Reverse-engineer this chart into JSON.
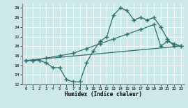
{
  "xlabel": "Humidex (Indice chaleur)",
  "bg_color": "#cce8e8",
  "grid_color": "#ffffff",
  "line_color": "#2d6e6e",
  "xlim": [
    -0.5,
    23.5
  ],
  "ylim": [
    12,
    29
  ],
  "xticks": [
    0,
    1,
    2,
    3,
    4,
    5,
    6,
    7,
    8,
    9,
    10,
    11,
    12,
    13,
    14,
    15,
    16,
    17,
    18,
    19,
    20,
    21,
    22,
    23
  ],
  "yticks": [
    12,
    14,
    16,
    18,
    20,
    22,
    24,
    26,
    28
  ],
  "series1_x": [
    0,
    1,
    2,
    3,
    4,
    5,
    6,
    7,
    8,
    9,
    10,
    11,
    12,
    13,
    14,
    15,
    16,
    17,
    18,
    19,
    20,
    21,
    22,
    23
  ],
  "series1_y": [
    17,
    17,
    17,
    16.5,
    15.5,
    15.5,
    13,
    12.5,
    12.5,
    16.5,
    19,
    21,
    22,
    26.5,
    28,
    27.5,
    25.5,
    26,
    25.5,
    26,
    24,
    21.5,
    20,
    20
  ],
  "series2_x": [
    0,
    1,
    3,
    5,
    7,
    9,
    11,
    13,
    15,
    17,
    19,
    20,
    21,
    22,
    23
  ],
  "series2_y": [
    17,
    17,
    17.5,
    18,
    18.5,
    19.5,
    20.5,
    21.5,
    22.5,
    23.5,
    24.5,
    20,
    21,
    20.5,
    20
  ],
  "series3_x": [
    0,
    23
  ],
  "series3_y": [
    17,
    20
  ],
  "marker_size": 2.5,
  "linewidth": 0.9
}
